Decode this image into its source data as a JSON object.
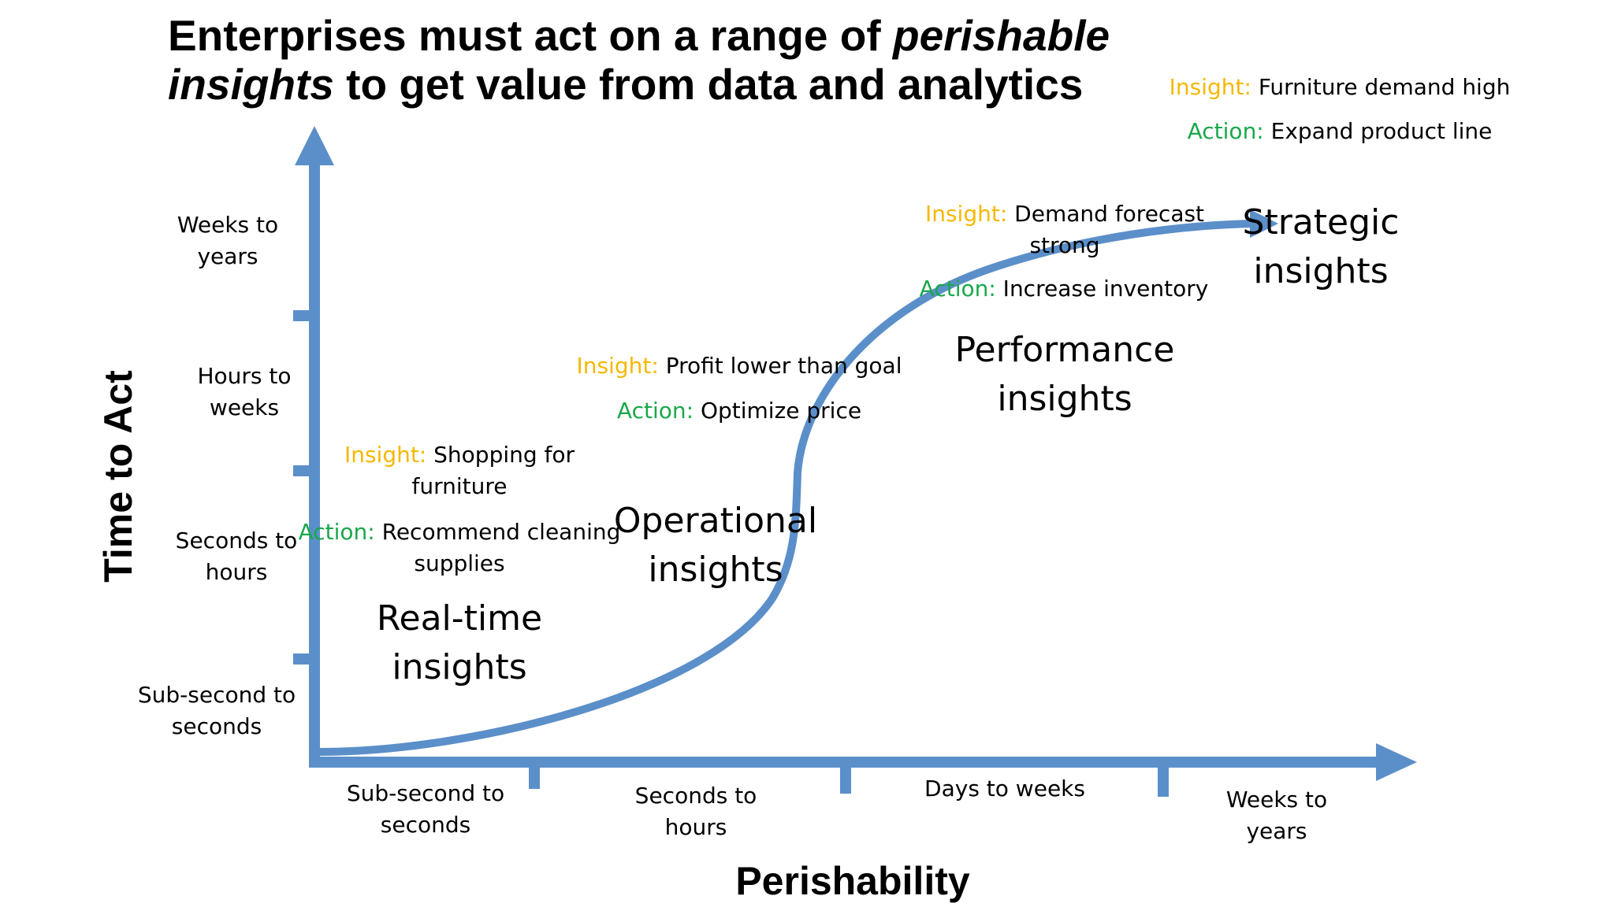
{
  "title": {
    "part1": "Enterprises must act on a range of ",
    "part2_italic": "perishable",
    "part3_italic": "insights",
    "part4": " to get value from data and analytics"
  },
  "axes": {
    "y_title": "Time to Act",
    "x_title": "Perishability",
    "y_labels": [
      {
        "line1": "Weeks to",
        "line2": "years"
      },
      {
        "line1": "Hours to",
        "line2": "weeks"
      },
      {
        "line1": "Seconds to",
        "line2": "hours"
      },
      {
        "line1": "Sub-second to",
        "line2": "seconds"
      }
    ],
    "x_labels": [
      {
        "line1": "Sub-second to",
        "line2": "seconds"
      },
      {
        "line1": "Seconds to",
        "line2": "hours"
      },
      {
        "line1": "Days to weeks",
        "line2": ""
      },
      {
        "line1": "Weeks to",
        "line2": "years"
      }
    ]
  },
  "stages": [
    {
      "name_line1": "Real-time",
      "name_line2": "insights",
      "insight_label": "Insight:",
      "insight_line1": " Shopping for",
      "insight_line2": "furniture",
      "action_label": "Action:",
      "action_line1": " Recommend cleaning",
      "action_line2": "supplies"
    },
    {
      "name_line1": "Operational",
      "name_line2": "insights",
      "insight_label": "Insight:",
      "insight_line1": " Profit lower than goal",
      "action_label": "Action:",
      "action_line1": " Optimize price"
    },
    {
      "name_line1": "Performance",
      "name_line2": "insights",
      "insight_label": "Insight:",
      "insight_line1": " Demand forecast",
      "insight_line2": "strong",
      "action_label": "Action:",
      "action_line1": " Increase inventory"
    },
    {
      "name_line1": "Strategic",
      "name_line2": "insights",
      "insight_label": "Insight:",
      "insight_line1": " Furniture demand high",
      "action_label": "Action:",
      "action_line1": " Expand product line"
    }
  ],
  "colors": {
    "axis": "#5b8fc9",
    "curve": "#5b8fc9",
    "insight": "#f5b800",
    "action": "#1aa84b"
  }
}
